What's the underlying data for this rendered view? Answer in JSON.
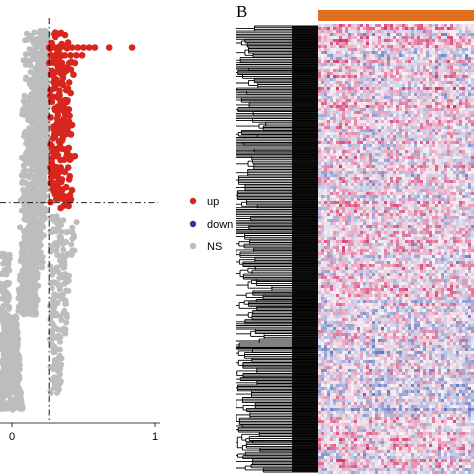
{
  "figure": {
    "panel_b_letter": "B"
  },
  "colors": {
    "up": "#d7261e",
    "down": "#2b3a9a",
    "ns": "#bdbdbd",
    "threshold_line": "#000000",
    "heatmap_high": "#d6336c",
    "heatmap_low": "#3b54b0",
    "heatmap_mid": "#f7f2f6",
    "annotation_bar": "#e07020",
    "dendrogram": "#000000"
  },
  "chart_data": [
    {
      "type": "scatter",
      "panel": "A",
      "title": "",
      "xlabel": "",
      "ylabel": "",
      "x_tick_labels": [
        "0",
        "1"
      ],
      "x_ticks": [
        0,
        1
      ],
      "xlim": [
        -0.08,
        1.0
      ],
      "ylim": [
        0,
        1.0
      ],
      "threshold_x": 0.26,
      "threshold_y": 0.56,
      "legend": {
        "placement": "right",
        "entries": [
          "up",
          "down",
          "NS"
        ]
      },
      "series": [
        {
          "name": "up",
          "values": [
            [
              0.26,
              0.96
            ],
            [
              0.3,
              0.96
            ],
            [
              0.34,
              0.96
            ],
            [
              0.38,
              0.96
            ],
            [
              0.42,
              0.96
            ],
            [
              0.46,
              0.96
            ],
            [
              0.5,
              0.96
            ],
            [
              0.54,
              0.96
            ],
            [
              0.58,
              0.96
            ],
            [
              0.68,
              0.96
            ],
            [
              0.84,
              0.96
            ],
            [
              0.27,
              0.94
            ],
            [
              0.32,
              0.94
            ],
            [
              0.37,
              0.94
            ],
            [
              0.41,
              0.94
            ],
            [
              0.45,
              0.94
            ],
            [
              0.49,
              0.94
            ],
            [
              0.26,
              0.92
            ],
            [
              0.3,
              0.92
            ],
            [
              0.35,
              0.92
            ],
            [
              0.4,
              0.92
            ],
            [
              0.44,
              0.92
            ],
            [
              0.28,
              0.9
            ],
            [
              0.33,
              0.9
            ],
            [
              0.38,
              0.9
            ],
            [
              0.43,
              0.89
            ],
            [
              0.29,
              0.87
            ],
            [
              0.35,
              0.87
            ],
            [
              0.4,
              0.87
            ],
            [
              0.27,
              0.85
            ],
            [
              0.33,
              0.84
            ],
            [
              0.38,
              0.85
            ],
            [
              0.28,
              0.82
            ],
            [
              0.34,
              0.82
            ],
            [
              0.31,
              0.8
            ],
            [
              0.37,
              0.79
            ],
            [
              0.27,
              0.78
            ],
            [
              0.33,
              0.77
            ],
            [
              0.29,
              0.75
            ],
            [
              0.36,
              0.75
            ],
            [
              0.42,
              0.76
            ],
            [
              0.3,
              0.73
            ],
            [
              0.35,
              0.72
            ],
            [
              0.27,
              0.71
            ],
            [
              0.32,
              0.7
            ],
            [
              0.39,
              0.7
            ],
            [
              0.29,
              0.68
            ],
            [
              0.34,
              0.67
            ],
            [
              0.44,
              0.68
            ],
            [
              0.28,
              0.66
            ],
            [
              0.33,
              0.65
            ],
            [
              0.37,
              0.64
            ],
            [
              0.3,
              0.63
            ],
            [
              0.35,
              0.62
            ],
            [
              0.4,
              0.62
            ],
            [
              0.27,
              0.61
            ],
            [
              0.32,
              0.6
            ],
            [
              0.38,
              0.6
            ],
            [
              0.29,
              0.59
            ],
            [
              0.34,
              0.58
            ],
            [
              0.31,
              0.57
            ],
            [
              0.36,
              0.57
            ]
          ]
        },
        {
          "name": "down",
          "values": []
        },
        {
          "name": "NS",
          "values": []
        }
      ]
    },
    {
      "type": "heatmap",
      "panel": "B",
      "title": "",
      "row_dendrogram": true,
      "annotation_bar": true
    }
  ]
}
